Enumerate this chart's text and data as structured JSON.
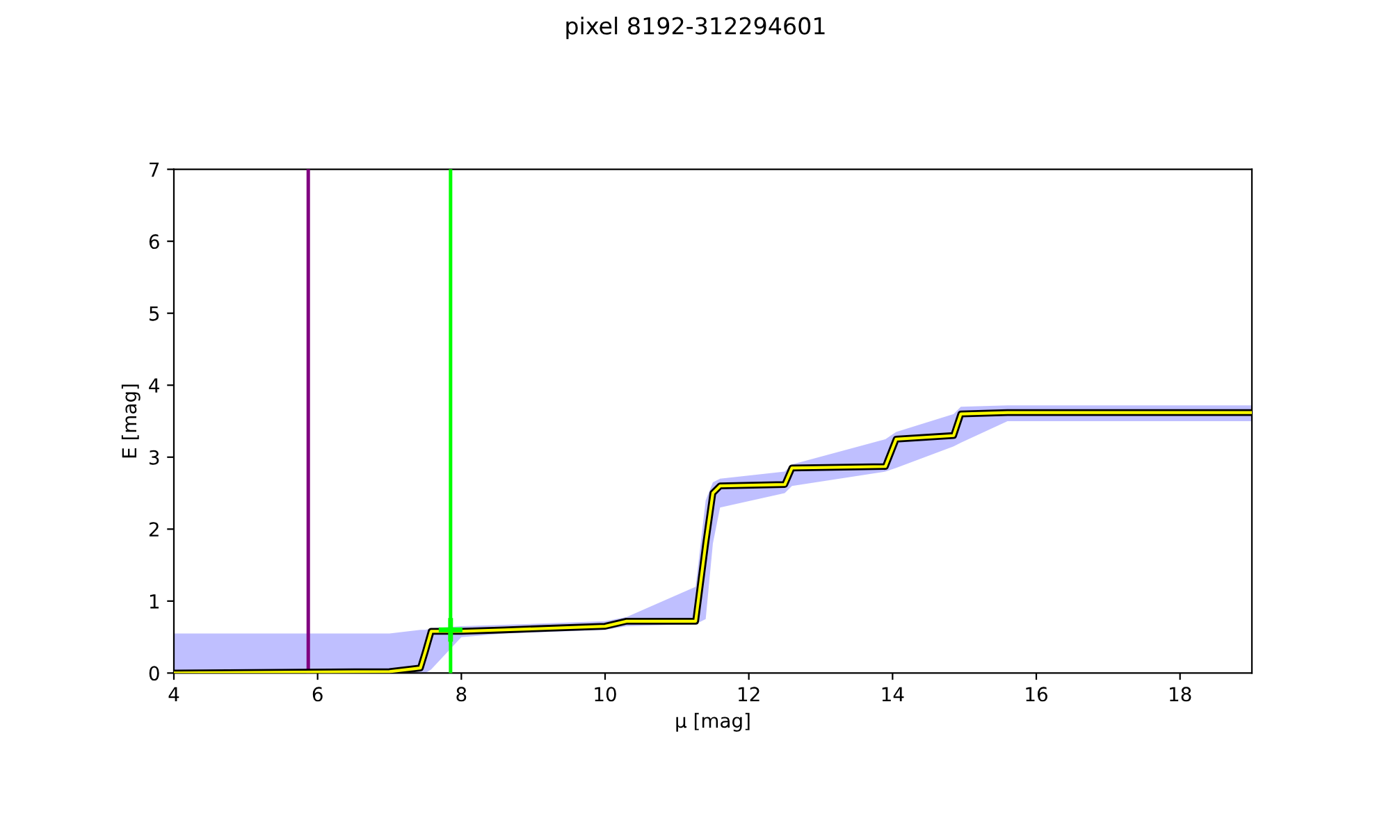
{
  "chart_data": {
    "type": "line",
    "title": "pixel 8192-312294601",
    "xlabel": "μ [mag]",
    "ylabel": "E [mag]",
    "xlim": [
      4,
      19
    ],
    "ylim": [
      0,
      7
    ],
    "xticks": [
      4,
      6,
      8,
      10,
      12,
      14,
      16,
      18
    ],
    "yticks": [
      0,
      1,
      2,
      3,
      4,
      5,
      6,
      7
    ],
    "grid": false,
    "legend": false,
    "series": [
      {
        "color": "#ffff00",
        "x": [
          4,
          7.0,
          7.43,
          7.5,
          7.58,
          8.0,
          8.6,
          10.0,
          10.3,
          11.26,
          11.4,
          11.5,
          11.6,
          12.5,
          12.6,
          13.9,
          14.05,
          14.85,
          14.95,
          15.6,
          19
        ],
        "values": [
          0.0,
          0.02,
          0.07,
          0.3,
          0.58,
          0.58,
          0.6,
          0.65,
          0.72,
          0.72,
          1.8,
          2.5,
          2.6,
          2.62,
          2.85,
          2.87,
          3.25,
          3.3,
          3.6,
          3.62,
          3.62
        ],
        "lower": [
          0.0,
          0.0,
          0.0,
          0.0,
          0.05,
          0.5,
          0.55,
          0.6,
          0.65,
          0.68,
          0.75,
          1.8,
          2.3,
          2.5,
          2.6,
          2.8,
          2.85,
          3.15,
          3.2,
          3.5,
          3.5
        ],
        "upper": [
          0.55,
          0.55,
          0.6,
          0.6,
          0.62,
          0.65,
          0.67,
          0.72,
          0.78,
          1.2,
          2.4,
          2.65,
          2.7,
          2.8,
          2.9,
          3.25,
          3.35,
          3.6,
          3.7,
          3.72,
          3.72
        ]
      },
      {
        "type": "scatter",
        "color": "#00ff00",
        "marker": "cross",
        "x": [
          7.85
        ],
        "values": [
          0.6
        ]
      }
    ],
    "ref_lines": [
      {
        "axis": "x",
        "value": 5.87,
        "color": "#800080"
      },
      {
        "axis": "x",
        "value": 7.85,
        "color": "#00ff00"
      }
    ]
  }
}
